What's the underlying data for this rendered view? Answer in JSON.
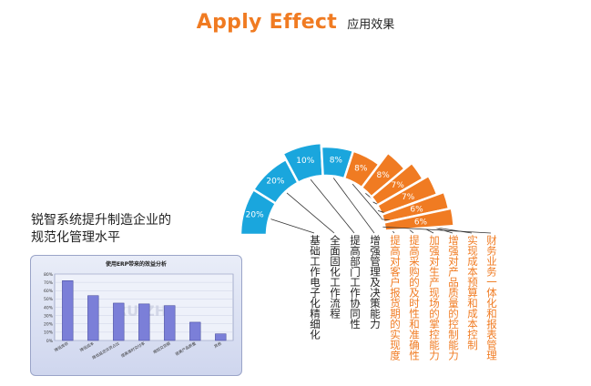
{
  "header": {
    "title_en": "Apply Effect",
    "title_cn": "应用效果"
  },
  "subtitle": [
    "锐智系统提升制造企业的",
    "规范化管理水平"
  ],
  "colors": {
    "blue": "#1aa6dd",
    "orange": "#f07b22",
    "title_orange": "#f07b22"
  },
  "fan": {
    "segments": [
      {
        "value": "20%",
        "label": "基础工作电子化精细化",
        "color": "blue"
      },
      {
        "value": "20%",
        "label": "全面固化工作流程",
        "color": "blue"
      },
      {
        "value": "10%",
        "label": "提高部门工作协同性",
        "color": "blue"
      },
      {
        "value": "8%",
        "label": "增强管理及决策能力",
        "color": "blue"
      },
      {
        "value": "8%",
        "label": "提高对客户报货期的实现度",
        "color": "orange"
      },
      {
        "value": "8%",
        "label": "提高采购的及时性和准确性",
        "color": "orange"
      },
      {
        "value": "7%",
        "label": "加强对生产现场的掌控能力",
        "color": "orange"
      },
      {
        "value": "7%",
        "label": "增强对产品质量的控制能力",
        "color": "orange"
      },
      {
        "value": "6%",
        "label": "实现成本预算和成本控制",
        "color": "orange"
      },
      {
        "value": "6%",
        "label": "财务业务一体化和报表管理",
        "color": "orange"
      }
    ]
  },
  "thumbnail_chart": {
    "type": "bar",
    "title": "使用ERP带来的效益分析",
    "categories": [
      "降低库存",
      "降低成本",
      "降低延迟交货占比",
      "提高准时交付率",
      "缩短交货期",
      "提高产品质量",
      "其他"
    ],
    "values": [
      72,
      54,
      45,
      44,
      42,
      22,
      8
    ],
    "ylim": [
      0,
      80
    ],
    "yticks": [
      "80%",
      "70%",
      "60%",
      "50%",
      "40%",
      "30%",
      "20%",
      "10%",
      "0%"
    ],
    "watermark": "RUIZHI"
  }
}
